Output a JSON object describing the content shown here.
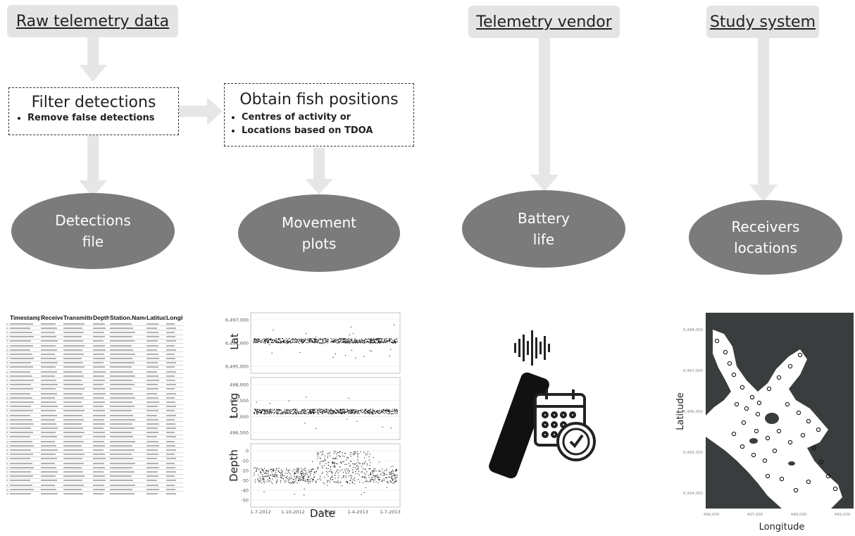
{
  "headers": {
    "raw": "Raw telemetry data",
    "vendor": "Telemetry vendor",
    "study": "Study system"
  },
  "filter_box": {
    "title": "Filter detections",
    "bullets": [
      "Remove false detections"
    ]
  },
  "positions_box": {
    "title": "Obtain fish positions",
    "bullets": [
      "Centres of activity or",
      "Locations based on TDOA"
    ]
  },
  "outputs": {
    "detections": [
      "Detections",
      "file"
    ],
    "movement": [
      "Movement",
      "plots"
    ],
    "battery": [
      "Battery",
      "life"
    ],
    "receivers": [
      "Receivers",
      "locations"
    ]
  },
  "table": {
    "columns": [
      "",
      "Timestamp",
      "Receiver",
      "Transmitter",
      "Depth",
      "Station.Name",
      "Latitude",
      "Longitude"
    ]
  },
  "movement_plot": {
    "xlabel": "Date",
    "x_ticks": [
      "1-7-2012",
      "1-10-2012",
      "1-1-2013",
      "1-4-2013",
      "1-7-2013"
    ],
    "panels": [
      {
        "ylabel": "Lat",
        "y_ticks": [
          "6,497,000",
          "6,496,000",
          "6,495,000"
        ]
      },
      {
        "ylabel": "Long",
        "y_ticks": [
          "498,000",
          "497,500",
          "497,000",
          "496,500"
        ]
      },
      {
        "ylabel": "Depth",
        "y_ticks": [
          "0",
          "-10",
          "-20",
          "-30",
          "-40",
          "-50"
        ]
      }
    ]
  },
  "map": {
    "xlabel": "Longitude",
    "ylabel": "Latitude",
    "x_ticks": [
      "496,000",
      "497,000",
      "498,000",
      "499,000"
    ],
    "y_ticks": [
      "6,498,000",
      "6,497,000",
      "6,496,000",
      "6,495,000",
      "6,494,000"
    ]
  },
  "colors": {
    "header_bg": "#e4e4e4",
    "arrow": "#e6e6e6",
    "ellipse": "#7b7b7b",
    "land": "#3a3d3d"
  }
}
